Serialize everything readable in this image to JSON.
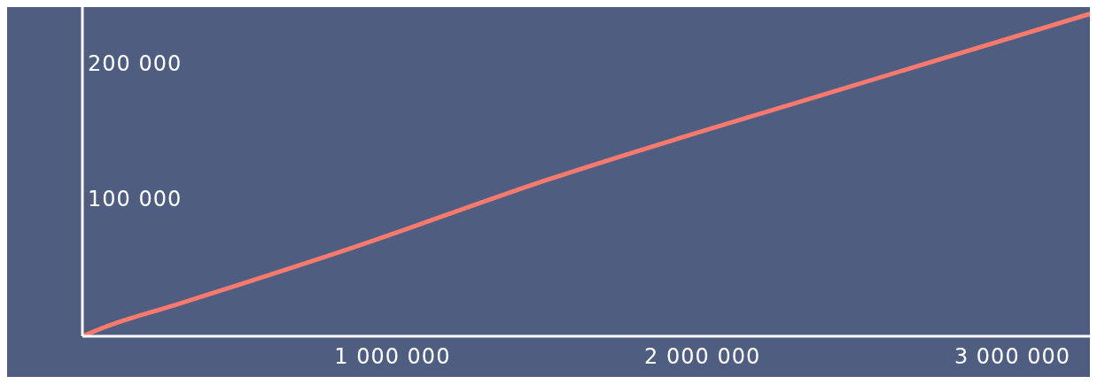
{
  "chart_data": {
    "type": "line",
    "x": [
      0,
      70000,
      300000,
      870000,
      1500000,
      2410000,
      3250000
    ],
    "series": [
      {
        "color": "#f87a6e",
        "values": [
          0,
          6500,
          23000,
          65000,
          115000,
          179000,
          237000
        ]
      }
    ],
    "xlim": [
      0,
      3250000
    ],
    "xticks": [
      {
        "value": 1000000,
        "label": "1 000 000"
      },
      {
        "value": 2000000,
        "label": "2 000 000"
      },
      {
        "value": 3000000,
        "label": "3 000 000"
      }
    ],
    "ylim": [
      0,
      242000
    ],
    "yticks": [
      {
        "value": 100000,
        "label": "100 000"
      },
      {
        "value": 200000,
        "label": "200 000"
      }
    ],
    "grid": false,
    "legend": false,
    "marker": "none",
    "line_style": "solid"
  }
}
